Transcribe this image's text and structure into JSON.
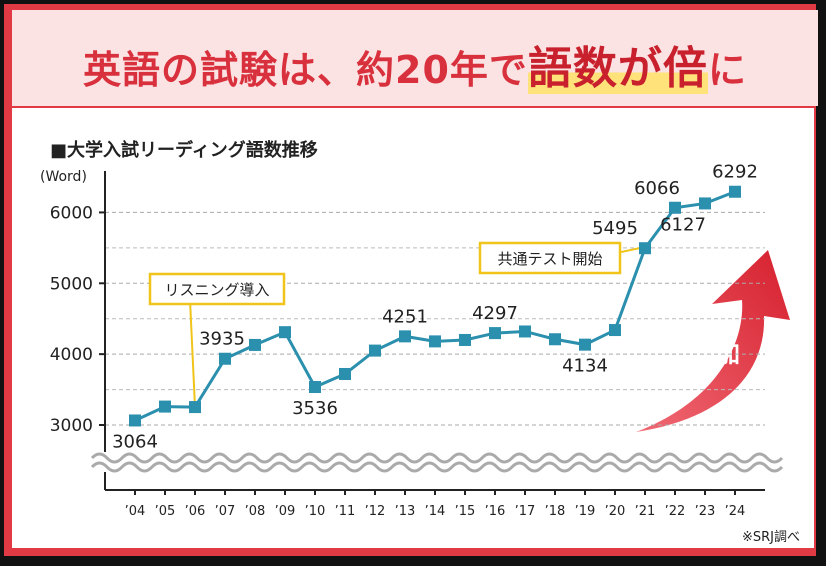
{
  "header": {
    "title_parts": [
      "英語の試験は、約20年で",
      "語数が倍",
      "に"
    ]
  },
  "chart_data": {
    "type": "line",
    "title": "■大学入試リーディング語数推移",
    "y_unit": "(Word)",
    "categories": [
      "’04",
      "’05",
      "’06",
      "’07",
      "’08",
      "’09",
      "’10",
      "’11",
      "’12",
      "’13",
      "’14",
      "’15",
      "’16",
      "’17",
      "’18",
      "’19",
      "’20",
      "’21",
      "’22",
      "’23",
      "’24"
    ],
    "series": [
      {
        "name": "語数",
        "color": "#2b8fae",
        "values": [
          3064,
          3260,
          3253,
          3935,
          4130,
          4310,
          3536,
          3720,
          4050,
          4251,
          4180,
          4200,
          4297,
          4320,
          4210,
          4134,
          4340,
          5495,
          6066,
          6127,
          6292
        ],
        "value_labels": [
          "3064",
          null,
          null,
          "3935",
          null,
          null,
          "3536",
          null,
          null,
          "4251",
          null,
          null,
          "4297",
          null,
          null,
          "4134",
          null,
          "5495",
          "6066",
          "6127",
          "6292"
        ]
      }
    ],
    "ylim": [
      3000,
      6500
    ],
    "yticks": [
      3000,
      4000,
      5000,
      6000
    ],
    "minor_yticks": [
      3500,
      4500,
      5500
    ],
    "grid": true,
    "annotations": [
      "リスニング導入",
      "共通テスト開始",
      "増加"
    ],
    "source": "※SRJ調べ"
  }
}
